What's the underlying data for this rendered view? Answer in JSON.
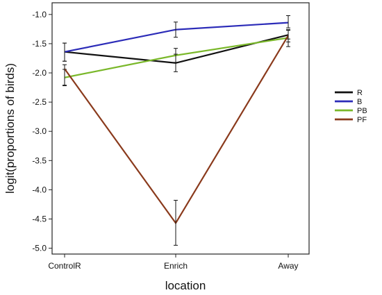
{
  "chart_data": {
    "type": "line",
    "title": "",
    "xlabel": "location",
    "ylabel": "logit(proportions of birds)",
    "categories": [
      "ControlR",
      "Enrich",
      "Away"
    ],
    "ylim": [
      -5.1,
      -0.8
    ],
    "yticks": [
      -1.0,
      -1.5,
      -2.0,
      -2.5,
      -3.0,
      -3.5,
      -4.0,
      -4.5,
      -5.0
    ],
    "ytick_labels": [
      "-1.0",
      "-1.5",
      "-2.0",
      "-2.5",
      "-3.0",
      "-3.5",
      "-4.0",
      "-4.5",
      "-5.0"
    ],
    "grid": false,
    "legend_position": "right",
    "series": [
      {
        "name": "R",
        "color": "#111111",
        "values": [
          -1.64,
          -1.83,
          -1.35
        ],
        "err_low": [
          -1.8,
          -1.98,
          -1.42
        ],
        "err_high": [
          -1.49,
          -1.68,
          -1.27
        ]
      },
      {
        "name": "B",
        "color": "#2b2bb8",
        "values": [
          -1.64,
          -1.26,
          -1.14
        ],
        "err_low": [
          -1.8,
          -1.39,
          -1.23
        ],
        "err_high": [
          -1.49,
          -1.13,
          -1.02
        ]
      },
      {
        "name": "PB",
        "color": "#7ab82a",
        "values": [
          -2.08,
          -1.7,
          -1.4
        ],
        "err_low": [
          -2.21,
          -1.82,
          -1.55
        ],
        "err_high": [
          -1.94,
          -1.58,
          -1.26
        ]
      },
      {
        "name": "PF",
        "color": "#8a3a1c",
        "values": [
          -1.93,
          -4.57,
          -1.36
        ],
        "err_low": [
          -2.22,
          -4.95,
          -1.47
        ],
        "err_high": [
          -1.86,
          -4.18,
          -1.27
        ]
      }
    ]
  }
}
